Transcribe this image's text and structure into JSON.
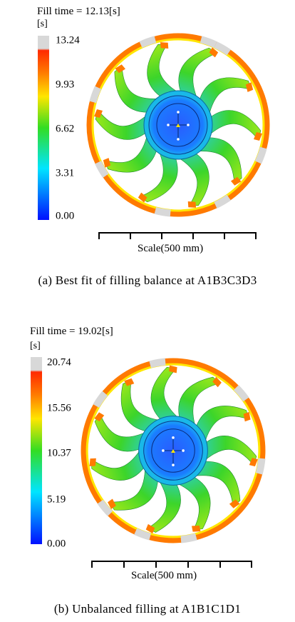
{
  "panels": [
    {
      "fill_time": "Fill time = 12.13[s]",
      "unit": "[s]",
      "ticks": [
        "13.24",
        "9.93",
        "6.62",
        "3.31",
        "0.00"
      ],
      "scale_label": "Scale(500 mm)",
      "caption": "(a)  Best  fit  of  filling  balance  at  A1B3C3D3"
    },
    {
      "fill_time": "Fill time = 19.02[s]",
      "unit": "[s]",
      "ticks": [
        "20.74",
        "15.56",
        "10.37",
        "5.19",
        "0.00"
      ],
      "scale_label": "Scale(500 mm)",
      "caption": "(b)  Unbalanced  filling  at  A1B1C1D1"
    }
  ],
  "colors": {
    "max_grey": "#d8d8d8",
    "red": "#ff2a00",
    "orange": "#ff7a00",
    "yellow": "#ffe600",
    "green": "#33dd22",
    "cyan": "#00e5ff",
    "blue": "#0010ff"
  }
}
